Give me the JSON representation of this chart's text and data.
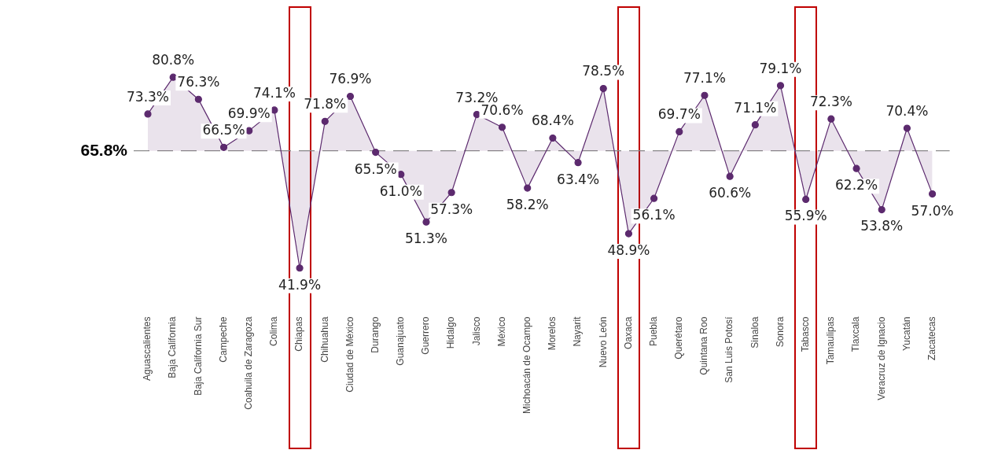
{
  "chart_data": {
    "type": "area",
    "categories": [
      "Aguascalientes",
      "Baja California",
      "Baja California Sur",
      "Campeche",
      "Coahuila de Zaragoza",
      "Colima",
      "Chiapas",
      "Chihuahua",
      "Ciudad de México",
      "Durango",
      "Guanajuato",
      "Guerrero",
      "Hidalgo",
      "Jalisco",
      "México",
      "Michoacán de Ocampo",
      "Morelos",
      "Nayarit",
      "Nuevo León",
      "Oaxaca",
      "Puebla",
      "Querétaro",
      "Quintana Roo",
      "San Luis Potosí",
      "Sinaloa",
      "Sonora",
      "Tabasco",
      "Tamaulipas",
      "Tlaxcala",
      "Veracruz de Ignacio",
      "Yucatán",
      "Zacatecas"
    ],
    "series": [
      {
        "color": "#5c2a6e",
        "values": [
          73.3,
          80.8,
          76.3,
          66.5,
          69.9,
          74.1,
          41.9,
          71.8,
          76.9,
          65.5,
          61.0,
          51.3,
          57.3,
          73.2,
          70.6,
          58.2,
          68.4,
          63.4,
          78.5,
          48.9,
          56.1,
          69.7,
          77.1,
          60.6,
          71.1,
          79.1,
          55.9,
          72.3,
          62.2,
          53.8,
          70.4,
          57.0
        ],
        "value_labels": [
          "73.3%",
          "80.8%",
          "76.3%",
          "66.5%",
          "69.9%",
          "74.1%",
          "41.9%",
          "71.8%",
          "76.9%",
          "65.5%",
          "61.0%",
          "51.3%",
          "57.3%",
          "73.2%",
          "70.6%",
          "58.2%",
          "68.4%",
          "63.4%",
          "78.5%",
          "48.9%",
          "56.1%",
          "69.7%",
          "77.1%",
          "60.6%",
          "71.1%",
          "79.1%",
          "55.9%",
          "72.3%",
          "62.2%",
          "53.8%",
          "70.4%",
          "57.0%"
        ]
      }
    ],
    "tick_labels": "x",
    "grid": false,
    "legend": false,
    "marker": "circle",
    "ref_lines": [
      {
        "axis": "y",
        "value": 65.8,
        "label": "65.8%",
        "color": "#8c8c8c",
        "line_style": "dashed"
      }
    ]
  }
}
